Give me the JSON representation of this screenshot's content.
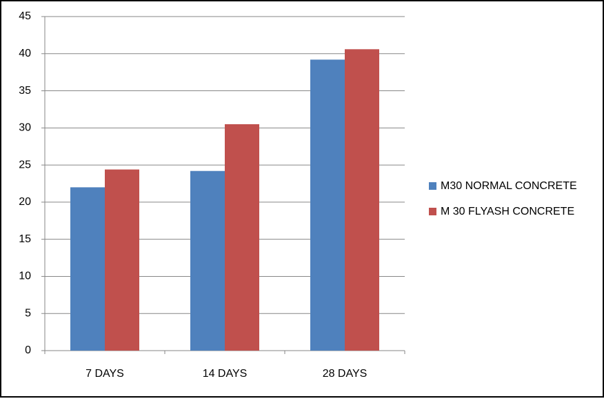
{
  "chart_data": {
    "type": "bar",
    "categories": [
      "7 DAYS",
      "14 DAYS",
      "28 DAYS"
    ],
    "series": [
      {
        "name": "M30 NORMAL CONCRETE",
        "color": "#4f81bd",
        "values": [
          22,
          24.2,
          39.2
        ]
      },
      {
        "name": "M 30 FLYASH CONCRETE",
        "color": "#c0504d",
        "values": [
          24.4,
          30.5,
          40.6
        ]
      }
    ],
    "ylim": [
      0,
      45
    ],
    "yticks": [
      0,
      5,
      10,
      15,
      20,
      25,
      30,
      35,
      40,
      45
    ],
    "grid": true,
    "legend": "right"
  }
}
